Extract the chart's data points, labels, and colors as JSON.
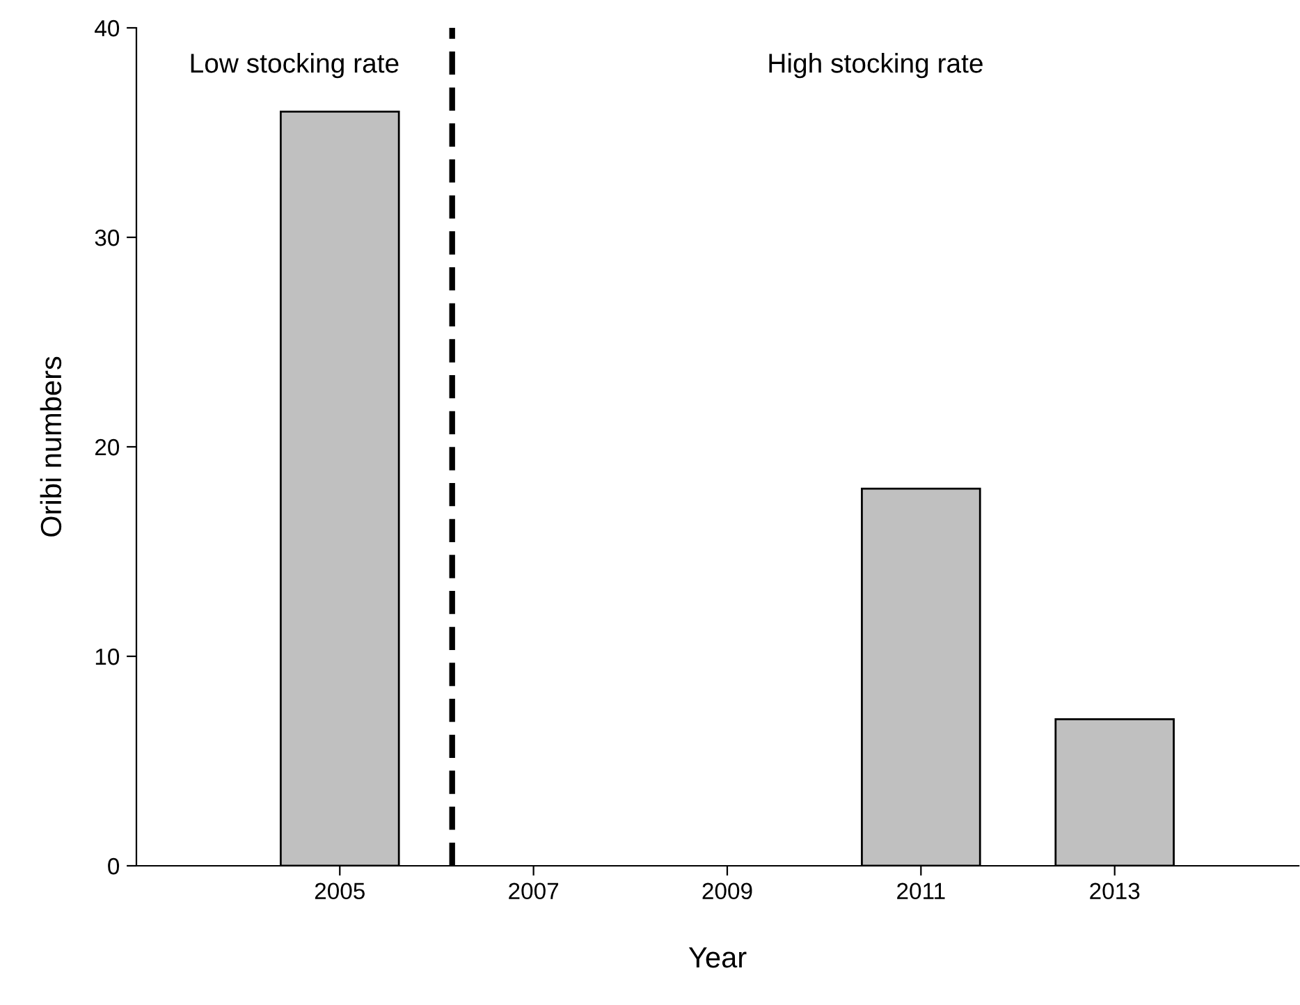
{
  "chart_data": {
    "type": "bar",
    "xlabel": "Year",
    "ylabel": "Oribi numbers",
    "x": [
      2005,
      2011,
      2013
    ],
    "values": [
      36,
      18,
      7
    ],
    "color": "#c0c0c0",
    "xlim": [
      2002.9,
      2014.9
    ],
    "xticks": [
      2005,
      2007,
      2009,
      2011,
      2013
    ],
    "ylim": [
      0,
      40
    ],
    "yticks": [
      0,
      10,
      20,
      30,
      40
    ],
    "grid": false,
    "ref_lines": [
      {
        "axis": "x",
        "value": 2006.16,
        "color": "#000000",
        "line_style": "dashed"
      }
    ],
    "annotations": [
      "Low stocking rate",
      "High stocking rate"
    ]
  }
}
